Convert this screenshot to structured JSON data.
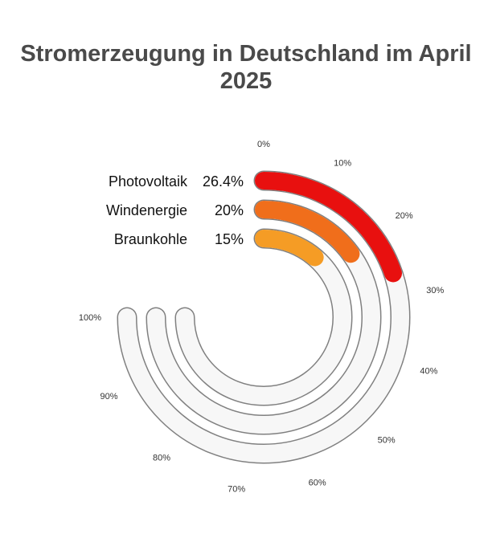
{
  "chart_data": {
    "type": "radial-bar",
    "title": "Stromerzeugung in Deutschland im April 2025",
    "unit": "%",
    "range": [
      0,
      100
    ],
    "tick_labels": [
      "0%",
      "10%",
      "20%",
      "30%",
      "40%",
      "50%",
      "60%",
      "70%",
      "80%",
      "90%",
      "100%"
    ],
    "series": [
      {
        "name": "Photovoltaik",
        "value": 26.4,
        "label": "26.4%",
        "color": "#e8100f"
      },
      {
        "name": "Windenergie",
        "value": 20,
        "label": "20%",
        "color": "#f06e1b"
      },
      {
        "name": "Braunkohle",
        "value": 15,
        "label": "15%",
        "color": "#f59c25"
      }
    ],
    "track_fill": "#f7f7f7",
    "track_stroke": "#808080"
  }
}
